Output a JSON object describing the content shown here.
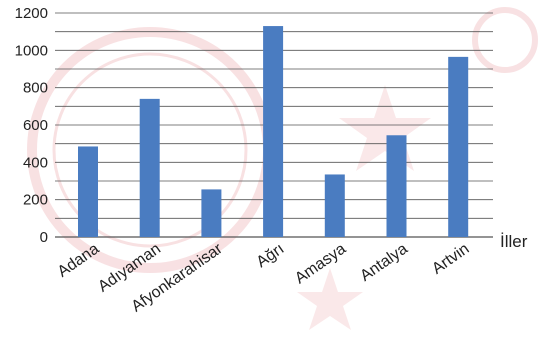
{
  "chart_data": {
    "type": "bar",
    "categories": [
      "Adana",
      "Adıyaman",
      "Afyonkarahisar",
      "Ağrı",
      "Amasya",
      "Antalya",
      "Artvin"
    ],
    "values": [
      485,
      740,
      255,
      1130,
      335,
      545,
      965
    ],
    "xlabel": "İller",
    "ylabel": "",
    "ylim": [
      0,
      1200
    ],
    "yticks": [
      0,
      200,
      400,
      600,
      800,
      1000,
      1200
    ],
    "minor_grid_step": 100,
    "grid": true,
    "legend": "none",
    "colors": {
      "bar": "#4a7cc1",
      "grid": "#555555",
      "watermark": "#f3c9cc"
    }
  }
}
